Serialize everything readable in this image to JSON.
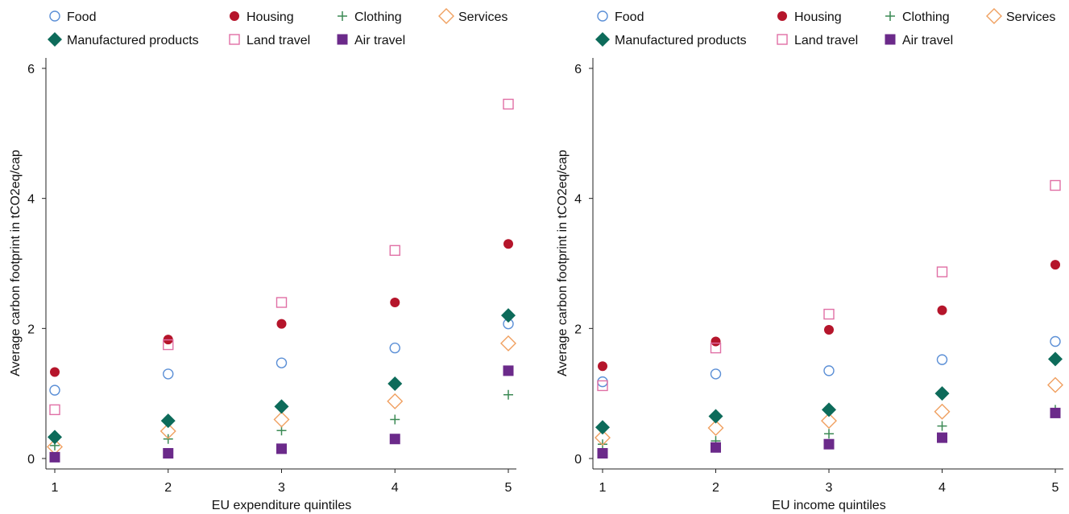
{
  "chart_data": [
    {
      "type": "scatter",
      "title": "",
      "xlabel": "EU expenditure quintiles",
      "ylabel": "Average carbon footprint in tCO2eq/cap",
      "x": [
        1,
        2,
        3,
        4,
        5
      ],
      "x_tick_labels": [
        "1",
        "2",
        "3",
        "4",
        "5"
      ],
      "y_tick_labels": [
        "0",
        "2",
        "4",
        "6"
      ],
      "ylim": [
        0,
        6
      ],
      "grid": false,
      "legend_position": "top",
      "series": [
        {
          "name": "Food",
          "marker": "circle-open",
          "color": "#5b8fd6",
          "values": [
            1.05,
            1.3,
            1.47,
            1.7,
            2.07
          ]
        },
        {
          "name": "Housing",
          "marker": "circle-filled",
          "color": "#b5152b",
          "values": [
            1.33,
            1.83,
            2.07,
            2.4,
            3.3
          ]
        },
        {
          "name": "Clothing",
          "marker": "plus",
          "color": "#3c8a55",
          "values": [
            0.2,
            0.3,
            0.43,
            0.6,
            0.98
          ]
        },
        {
          "name": "Services",
          "marker": "diamond-open",
          "color": "#f0a060",
          "values": [
            0.18,
            0.42,
            0.6,
            0.88,
            1.77
          ]
        },
        {
          "name": "Manufactured products",
          "marker": "diamond-filled",
          "color": "#0d6b5a",
          "values": [
            0.33,
            0.58,
            0.8,
            1.15,
            2.2
          ]
        },
        {
          "name": "Land travel",
          "marker": "square-open",
          "color": "#e06fa5",
          "values": [
            0.75,
            1.75,
            2.4,
            3.2,
            5.45
          ]
        },
        {
          "name": "Air travel",
          "marker": "square-filled",
          "color": "#6b2a8a",
          "values": [
            0.02,
            0.08,
            0.15,
            0.3,
            1.35
          ]
        }
      ]
    },
    {
      "type": "scatter",
      "title": "",
      "xlabel": "EU income quintiles",
      "ylabel": "Average carbon footprint in tCO2eq/cap",
      "x": [
        1,
        2,
        3,
        4,
        5
      ],
      "x_tick_labels": [
        "1",
        "2",
        "3",
        "4",
        "5"
      ],
      "y_tick_labels": [
        "0",
        "2",
        "4",
        "6"
      ],
      "ylim": [
        0,
        6
      ],
      "grid": false,
      "legend_position": "top",
      "series": [
        {
          "name": "Food",
          "marker": "circle-open",
          "color": "#5b8fd6",
          "values": [
            1.18,
            1.3,
            1.35,
            1.52,
            1.8
          ]
        },
        {
          "name": "Housing",
          "marker": "circle-filled",
          "color": "#b5152b",
          "values": [
            1.42,
            1.8,
            1.98,
            2.28,
            2.98
          ]
        },
        {
          "name": "Clothing",
          "marker": "plus",
          "color": "#3c8a55",
          "values": [
            0.22,
            0.27,
            0.38,
            0.5,
            0.75
          ]
        },
        {
          "name": "Services",
          "marker": "diamond-open",
          "color": "#f0a060",
          "values": [
            0.32,
            0.47,
            0.58,
            0.72,
            1.13
          ]
        },
        {
          "name": "Manufactured products",
          "marker": "diamond-filled",
          "color": "#0d6b5a",
          "values": [
            0.48,
            0.65,
            0.75,
            1.0,
            1.53
          ]
        },
        {
          "name": "Land travel",
          "marker": "square-open",
          "color": "#e06fa5",
          "values": [
            1.12,
            1.7,
            2.22,
            2.87,
            4.2
          ]
        },
        {
          "name": "Air travel",
          "marker": "square-filled",
          "color": "#6b2a8a",
          "values": [
            0.08,
            0.17,
            0.22,
            0.32,
            0.7
          ]
        }
      ]
    }
  ]
}
